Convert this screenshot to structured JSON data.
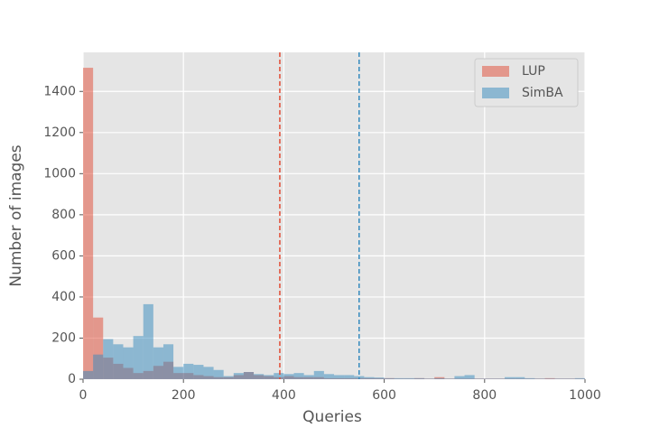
{
  "chart_data": {
    "type": "histogram",
    "xlabel": "Queries",
    "ylabel": "Number of images",
    "bins": [
      0,
      20,
      40,
      60,
      80,
      100,
      120,
      140,
      160,
      180,
      200,
      220,
      240,
      260,
      280,
      300,
      320,
      340,
      360,
      380,
      400,
      420,
      440,
      460,
      480,
      500,
      520,
      540,
      560,
      580,
      600,
      620,
      640,
      660,
      680,
      700,
      720,
      740,
      760,
      780,
      800,
      820,
      840,
      860,
      880,
      900,
      920,
      940,
      960,
      980,
      1000
    ],
    "series": [
      {
        "name": "LUP",
        "color": "#E24A33",
        "values": [
          1515,
          300,
          105,
          75,
          55,
          30,
          40,
          65,
          85,
          30,
          30,
          20,
          15,
          10,
          10,
          20,
          35,
          20,
          15,
          10,
          15,
          10,
          10,
          10,
          5,
          5,
          5,
          5,
          5,
          5,
          5,
          3,
          3,
          5,
          3,
          10,
          3,
          3,
          3,
          3,
          3,
          3,
          3,
          3,
          3,
          3,
          5,
          3,
          3,
          3
        ]
      },
      {
        "name": "SimBA",
        "color": "#348ABD",
        "values": [
          40,
          120,
          195,
          170,
          155,
          210,
          365,
          155,
          170,
          60,
          75,
          70,
          60,
          45,
          15,
          30,
          35,
          25,
          20,
          30,
          25,
          30,
          20,
          40,
          25,
          20,
          20,
          15,
          10,
          8,
          5,
          5,
          5,
          5,
          3,
          5,
          3,
          15,
          20,
          3,
          3,
          3,
          10,
          10,
          5,
          3,
          3,
          3,
          3,
          5
        ]
      }
    ],
    "vlines": [
      {
        "value": 392,
        "color": "#E24A33"
      },
      {
        "value": 550,
        "color": "#348ABD"
      }
    ],
    "xlim": [
      0,
      1000
    ],
    "xticks": [
      0,
      200,
      400,
      600,
      800,
      1000
    ],
    "ylim": [
      0,
      1590
    ],
    "yticks": [
      0,
      200,
      400,
      600,
      800,
      1000,
      1200,
      1400
    ],
    "grid": true,
    "legend": "upper right"
  }
}
